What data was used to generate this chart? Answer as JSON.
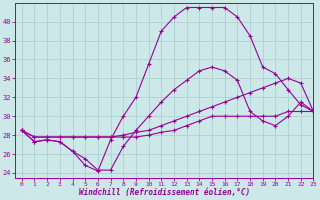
{
  "title": "",
  "xlabel": "Windchill (Refroidissement éolien,°C)",
  "ylabel": "",
  "xlim": [
    -0.5,
    23
  ],
  "ylim": [
    23.5,
    42
  ],
  "xticks": [
    0,
    1,
    2,
    3,
    4,
    5,
    6,
    7,
    8,
    9,
    10,
    11,
    12,
    13,
    14,
    15,
    16,
    17,
    18,
    19,
    20,
    21,
    22,
    23
  ],
  "yticks": [
    24,
    26,
    28,
    30,
    32,
    34,
    36,
    38,
    40
  ],
  "bg_color": "#cce8e8",
  "line_color": "#990099",
  "grid_color": "#aacccc",
  "series": [
    {
      "y": [
        28.5,
        27.3,
        27.5,
        27.3,
        26.3,
        24.8,
        24.2,
        27.5,
        30.0,
        32.0,
        35.5,
        39.0,
        40.5,
        41.5,
        41.5,
        41.5,
        41.5,
        40.5,
        38.5,
        35.2,
        34.5,
        32.8,
        31.2,
        30.5
      ],
      "marker": "+"
    },
    {
      "y": [
        28.5,
        27.3,
        27.5,
        27.3,
        26.3,
        25.5,
        24.3,
        24.3,
        26.8,
        28.5,
        30.0,
        31.5,
        32.8,
        33.8,
        34.8,
        35.2,
        34.8,
        33.8,
        30.5,
        29.5,
        29.0,
        30.0,
        31.5,
        30.5
      ],
      "marker": "+"
    },
    {
      "y": [
        28.5,
        27.8,
        27.8,
        27.8,
        27.8,
        27.8,
        27.8,
        27.8,
        28.0,
        28.3,
        28.5,
        29.0,
        29.5,
        30.0,
        30.5,
        31.0,
        31.5,
        32.0,
        32.5,
        33.0,
        33.5,
        34.0,
        33.5,
        30.5
      ],
      "marker": "+"
    },
    {
      "y": [
        28.5,
        27.8,
        27.8,
        27.8,
        27.8,
        27.8,
        27.8,
        27.8,
        27.8,
        27.8,
        28.0,
        28.3,
        28.5,
        29.0,
        29.5,
        30.0,
        30.0,
        30.0,
        30.0,
        30.0,
        30.0,
        30.5,
        30.5,
        30.5
      ],
      "marker": "+"
    }
  ]
}
